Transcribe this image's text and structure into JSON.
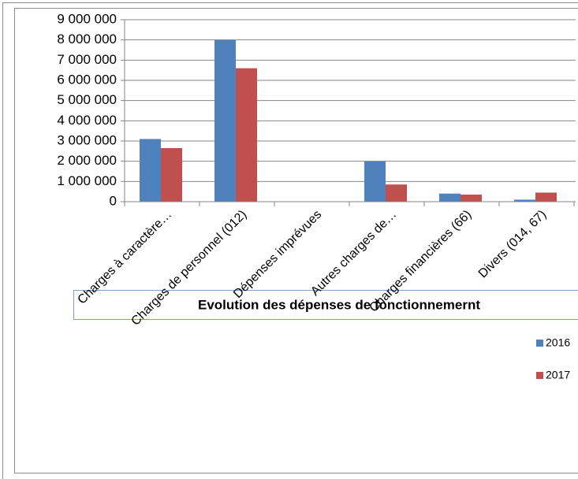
{
  "chart_data": {
    "type": "bar",
    "title": "Evolution des dépenses de fonctionnemernt",
    "categories": [
      "Charges à caractère…",
      "Charges de personnel (012)",
      "Dépenses imprévues",
      "Autres charges de…",
      "Charges financières (66)",
      "Divers (014, 67)"
    ],
    "series": [
      {
        "name": "2016",
        "color": "#4f81bd",
        "values": [
          3100000,
          8000000,
          0,
          2000000,
          400000,
          100000
        ]
      },
      {
        "name": "2017",
        "color": "#c0504d",
        "values": [
          2650000,
          6600000,
          0,
          850000,
          350000,
          450000
        ]
      }
    ],
    "ylim": [
      0,
      9000000
    ],
    "yticks": [
      0,
      {
        "value": 1000000,
        "label": "1 000 000"
      },
      {
        "value": 2000000,
        "label": "2 000 000"
      },
      {
        "value": 3000000,
        "label": "3 000 000"
      },
      {
        "value": 4000000,
        "label": "4 000 000"
      },
      {
        "value": 5000000,
        "label": "5 000 000"
      },
      {
        "value": 6000000,
        "label": "6 000 000"
      },
      {
        "value": 7000000,
        "label": "7 000 000"
      },
      {
        "value": 8000000,
        "label": "8 000 000"
      },
      {
        "value": 9000000,
        "label": "9 000 000"
      }
    ],
    "grid": true,
    "legend": "right"
  }
}
